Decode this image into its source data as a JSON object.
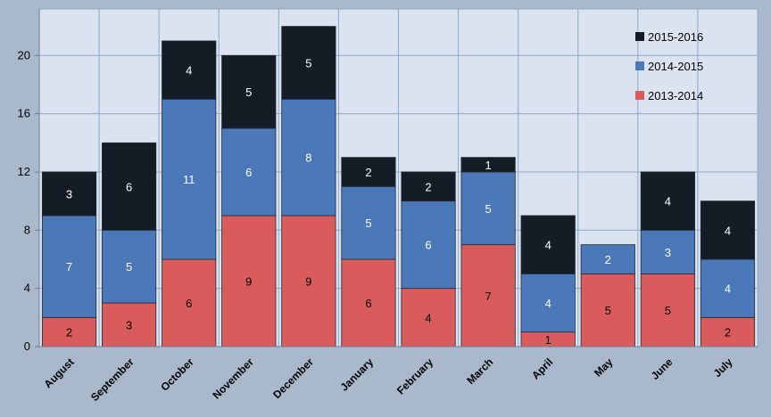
{
  "chart_data": {
    "type": "bar",
    "stacked": true,
    "categories": [
      "August",
      "September",
      "October",
      "November",
      "December",
      "January",
      "February",
      "March",
      "April",
      "May",
      "June",
      "July"
    ],
    "series": [
      {
        "name": "2013-2014",
        "values": [
          2,
          3,
          6,
          9,
          9,
          6,
          4,
          7,
          1,
          5,
          5,
          2
        ],
        "color": "#d95b5b"
      },
      {
        "name": "2014-2015",
        "values": [
          7,
          5,
          11,
          6,
          8,
          5,
          6,
          5,
          4,
          2,
          3,
          4
        ],
        "color": "#4a78b8"
      },
      {
        "name": "2015-2016",
        "values": [
          3,
          6,
          4,
          5,
          5,
          2,
          2,
          1,
          4,
          null,
          4,
          4
        ],
        "color": "#141c26"
      }
    ],
    "legend_order": [
      "2015-2016",
      "2014-2015",
      "2013-2014"
    ],
    "legend_position": "top-right",
    "yticks": [
      0,
      4,
      8,
      12,
      16,
      20
    ],
    "ylim": [
      0,
      23.2
    ],
    "grid": true,
    "data_labels": true,
    "title": "",
    "xlabel": "",
    "ylabel": "",
    "colors": {
      "frame_background": "#aab8cc",
      "plot_background": "#dae3ef",
      "grid": "#8ea8c8"
    }
  }
}
